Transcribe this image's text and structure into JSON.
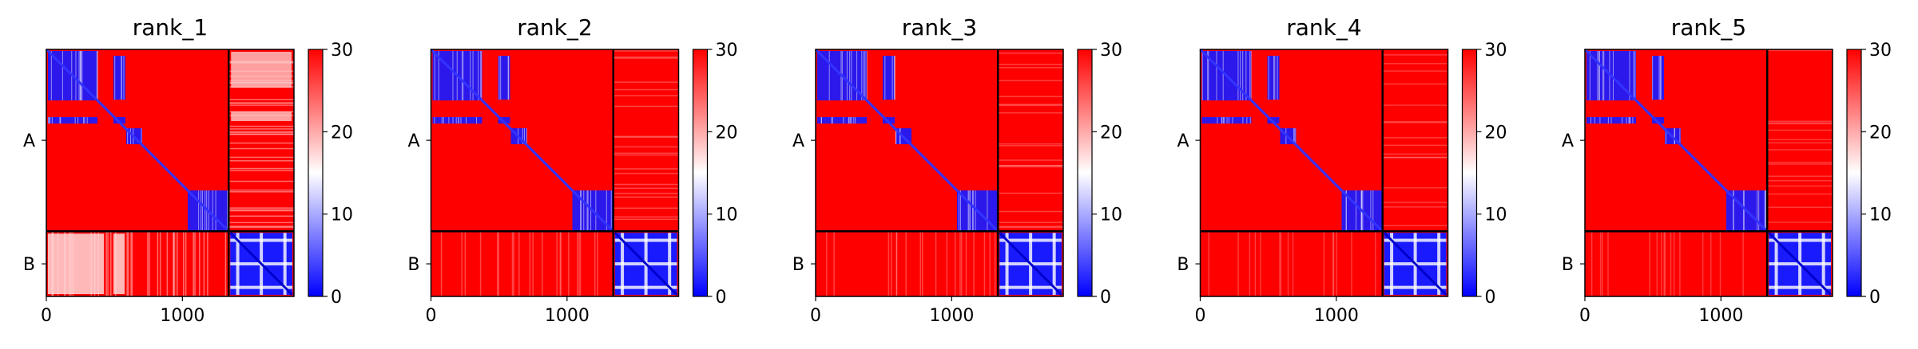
{
  "chart_data": [
    {
      "type": "heatmap",
      "title": "rank_1",
      "y_tick_labels": [
        "A",
        "B"
      ],
      "x_ticks": [
        0,
        1000
      ],
      "x_tick_labels": [
        "0",
        "1000"
      ],
      "chain_boundary": 1340,
      "total_length": 1820,
      "colorbar": {
        "min": 0,
        "max": 30,
        "ticks": [
          0,
          10,
          20,
          30
        ],
        "tick_labels": [
          "0",
          "10",
          "20",
          "30"
        ],
        "colors": [
          "#0000ff",
          "#ffffff",
          "#ff0000"
        ]
      },
      "noise": 0.9
    },
    {
      "type": "heatmap",
      "title": "rank_2",
      "y_tick_labels": [
        "A",
        "B"
      ],
      "x_ticks": [
        0,
        1000
      ],
      "x_tick_labels": [
        "0",
        "1000"
      ],
      "chain_boundary": 1340,
      "total_length": 1820,
      "colorbar": {
        "min": 0,
        "max": 30,
        "ticks": [
          0,
          10,
          20,
          30
        ],
        "tick_labels": [
          "0",
          "10",
          "20",
          "30"
        ],
        "colors": [
          "#0000ff",
          "#ffffff",
          "#ff0000"
        ]
      },
      "noise": 0.35
    },
    {
      "type": "heatmap",
      "title": "rank_3",
      "y_tick_labels": [
        "A",
        "B"
      ],
      "x_ticks": [
        0,
        1000
      ],
      "x_tick_labels": [
        "0",
        "1000"
      ],
      "chain_boundary": 1340,
      "total_length": 1820,
      "colorbar": {
        "min": 0,
        "max": 30,
        "ticks": [
          0,
          10,
          20,
          30
        ],
        "tick_labels": [
          "0",
          "10",
          "20",
          "30"
        ],
        "colors": [
          "#0000ff",
          "#ffffff",
          "#ff0000"
        ]
      },
      "noise": 0.3
    },
    {
      "type": "heatmap",
      "title": "rank_4",
      "y_tick_labels": [
        "A",
        "B"
      ],
      "x_ticks": [
        0,
        1000
      ],
      "x_tick_labels": [
        "0",
        "1000"
      ],
      "chain_boundary": 1340,
      "total_length": 1820,
      "colorbar": {
        "min": 0,
        "max": 30,
        "ticks": [
          0,
          10,
          20,
          30
        ],
        "tick_labels": [
          "0",
          "10",
          "20",
          "30"
        ],
        "colors": [
          "#0000ff",
          "#ffffff",
          "#ff0000"
        ]
      },
      "noise": 0.2
    },
    {
      "type": "heatmap",
      "title": "rank_5",
      "y_tick_labels": [
        "A",
        "B"
      ],
      "x_ticks": [
        0,
        1000
      ],
      "x_tick_labels": [
        "0",
        "1000"
      ],
      "chain_boundary": 1340,
      "total_length": 1820,
      "colorbar": {
        "min": 0,
        "max": 30,
        "ticks": [
          0,
          10,
          20,
          30
        ],
        "tick_labels": [
          "0",
          "10",
          "20",
          "30"
        ],
        "colors": [
          "#0000ff",
          "#ffffff",
          "#ff0000"
        ]
      },
      "noise": 0.2
    }
  ]
}
